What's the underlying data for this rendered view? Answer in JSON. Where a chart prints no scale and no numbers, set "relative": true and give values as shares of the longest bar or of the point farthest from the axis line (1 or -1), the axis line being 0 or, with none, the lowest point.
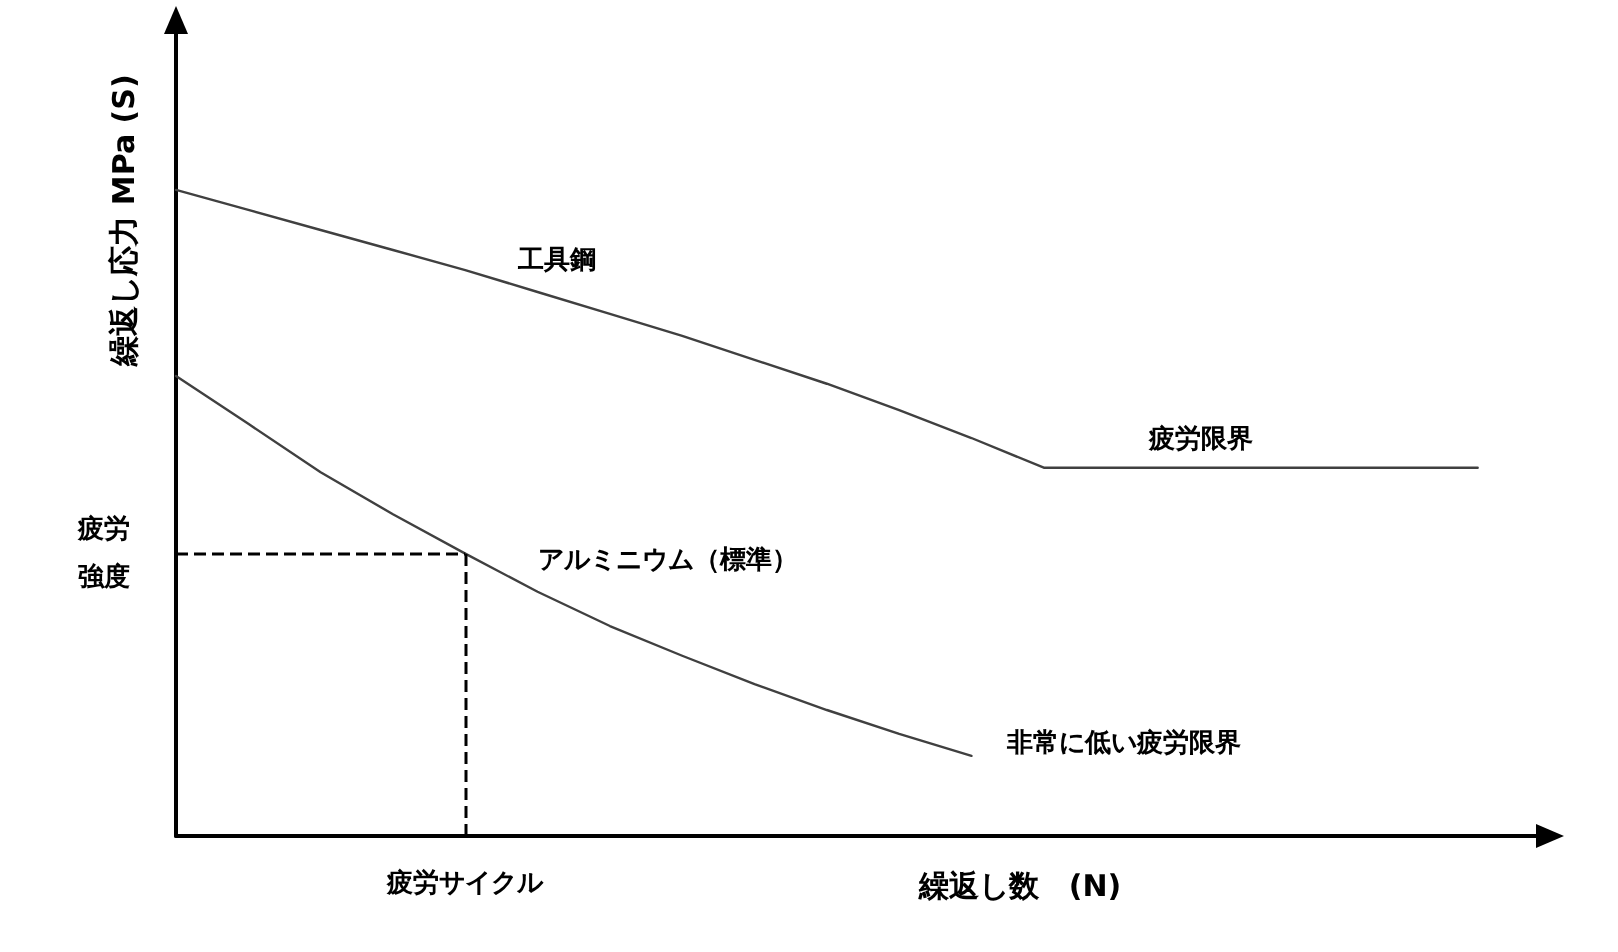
{
  "chart_data": {
    "type": "line",
    "relative": true,
    "xlabel": "繰返し数　(N)",
    "ylabel": "繰返し応力 MPa (S)",
    "categories": [
      null,
      null,
      null,
      null,
      null,
      null,
      null,
      null,
      null,
      null,
      null,
      null,
      null,
      null,
      null,
      null,
      null,
      null,
      null,
      null
    ],
    "series": [
      {
        "name": "工具鋼",
        "color": "#404040",
        "values": [
          1,
          0.969,
          0.938,
          0.907,
          0.876,
          0.842,
          0.808,
          0.774,
          0.737,
          0.7,
          0.659,
          0.616,
          0.57,
          0.57,
          0.57,
          0.57,
          0.57,
          0.57,
          0.57,
          null
        ]
      },
      {
        "name": "アルミニウム（標準）",
        "color": "#404040",
        "values": [
          0.712,
          0.638,
          0.563,
          0.498,
          0.437,
          0.378,
          0.325,
          0.279,
          0.235,
          0.195,
          0.158,
          0.124,
          null,
          null,
          null,
          null,
          null,
          null,
          null,
          null
        ]
      }
    ],
    "ref_lines": [
      {
        "axis": "y",
        "value": 0.437,
        "label": "疲労強度",
        "line_style": "dashed",
        "color": "#000000"
      }
    ],
    "annotations": [
      {
        "text": "疲労限界",
        "y": 0.57
      },
      "非常に低い疲労限界",
      "疲労サイクル"
    ],
    "marker": "none",
    "line_style": "solid",
    "legend": false,
    "grid": false
  }
}
